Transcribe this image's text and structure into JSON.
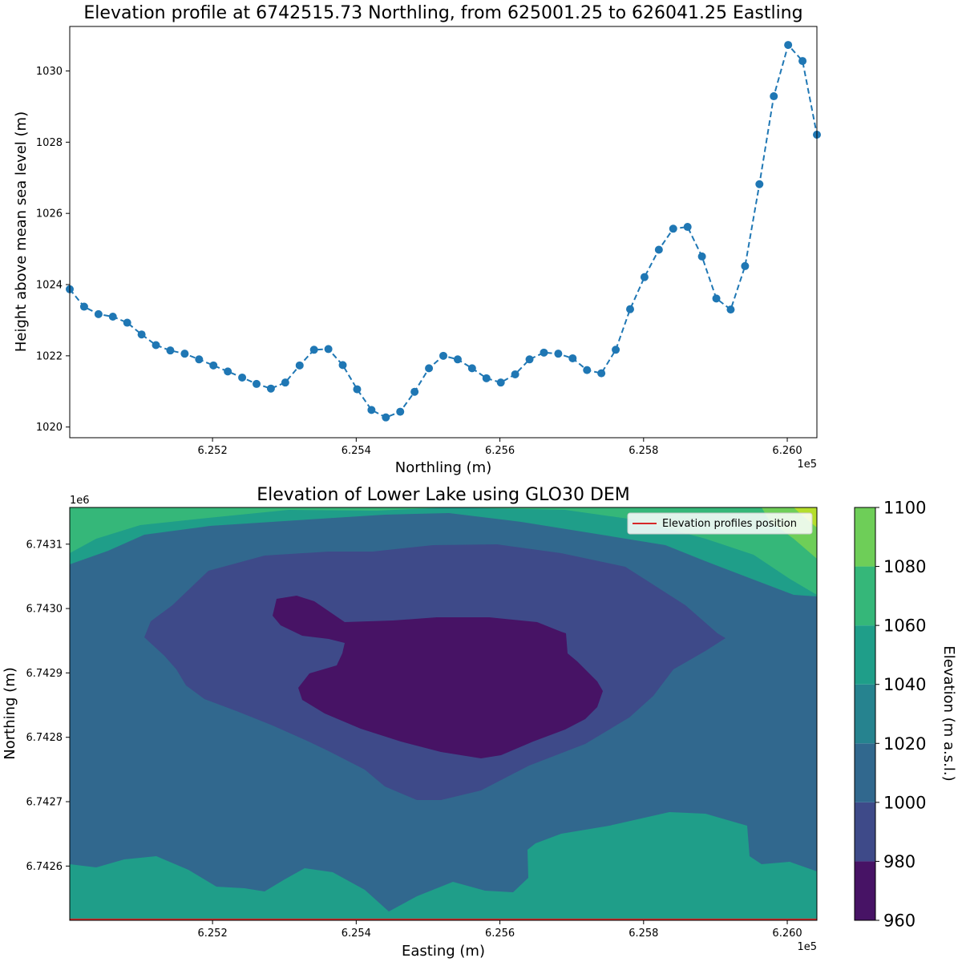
{
  "chart_data": [
    {
      "type": "line",
      "title": "Elevation profile at 6742515.73 Northling, from 625001.25 to 626041.25 Eastling",
      "xlabel": "Northling (m)",
      "ylabel": "Height above mean sea level (m)",
      "x_offset_label": "1e5",
      "xlim": [
        625001.25,
        626041.25
      ],
      "ylim": [
        1019.7,
        1031.25
      ],
      "x_ticks": [
        625200,
        625400,
        625600,
        625800,
        626000
      ],
      "x_tick_labels": [
        "6.252",
        "6.254",
        "6.256",
        "6.258",
        "6.260"
      ],
      "y_ticks": [
        1020,
        1022,
        1024,
        1026,
        1028,
        1030
      ],
      "y_tick_labels": [
        "1020",
        "1022",
        "1024",
        "1026",
        "1028",
        "1030"
      ],
      "grid": false,
      "line_style": "dashed",
      "marker": "circle",
      "color": "#1f77b4",
      "series": [
        {
          "x": [
            625001.25,
            625021.25,
            625041.25,
            625061.25,
            625081.25,
            625101.25,
            625121.25,
            625141.25,
            625161.25,
            625181.25,
            625201.25,
            625221.25,
            625241.25,
            625261.25,
            625281.25,
            625301.25,
            625321.25,
            625341.25,
            625361.25,
            625381.25,
            625401.25,
            625421.25,
            625441.25,
            625461.25,
            625481.25,
            625501.25,
            625521.25,
            625541.25,
            625561.25,
            625581.25,
            625601.25,
            625621.25,
            625641.25,
            625661.25,
            625681.25,
            625701.25,
            625721.25,
            625741.25,
            625761.25,
            625781.25,
            625801.25,
            625821.25,
            625841.25,
            625861.25,
            625881.25,
            625901.25,
            625921.25,
            625941.25,
            625961.25,
            625981.25,
            626001.25,
            626021.25,
            626041.25
          ],
          "y": [
            1023.87,
            1023.38,
            1023.17,
            1023.1,
            1022.93,
            1022.6,
            1022.3,
            1022.15,
            1022.06,
            1021.9,
            1021.73,
            1021.56,
            1021.39,
            1021.21,
            1021.08,
            1021.25,
            1021.73,
            1022.17,
            1022.19,
            1021.74,
            1021.06,
            1020.48,
            1020.27,
            1020.43,
            1020.99,
            1021.65,
            1022.0,
            1021.9,
            1021.65,
            1021.37,
            1021.25,
            1021.48,
            1021.9,
            1022.09,
            1022.06,
            1021.93,
            1021.6,
            1021.51,
            1022.17,
            1023.31,
            1024.21,
            1024.98,
            1025.57,
            1025.62,
            1024.79,
            1023.61,
            1023.3,
            1024.52,
            1026.82,
            1029.29,
            1030.73,
            1030.28,
            1028.21
          ]
        }
      ]
    },
    {
      "type": "contour",
      "title": "Elevation of Lower Lake using GLO30 DEM",
      "xlabel": "Easting (m)",
      "ylabel": "Northing (m)",
      "x_offset_label": "1e5",
      "y_offset_label": "1e6",
      "xlim": [
        625001.25,
        626041.25
      ],
      "ylim": [
        6742515.73,
        6743157
      ],
      "x_ticks": [
        625200,
        625400,
        625600,
        625800,
        626000
      ],
      "x_tick_labels": [
        "6.252",
        "6.254",
        "6.256",
        "6.258",
        "6.260"
      ],
      "y_ticks": [
        6742600,
        6742700,
        6742800,
        6742900,
        6743000,
        6743100
      ],
      "y_tick_labels": [
        "6.7426",
        "6.7427",
        "6.7428",
        "6.7429",
        "6.7430",
        "6.7431"
      ],
      "legend": {
        "label": "Elevation profiles position",
        "placement": "upper right",
        "line_color": "#d62728"
      },
      "profile_line_northing": 6742515.73,
      "colorbar": {
        "label": "Elevation (m a.s.l.)",
        "levels": [
          960,
          980,
          1000,
          1020,
          1040,
          1060,
          1080,
          1100
        ],
        "tick_labels": [
          "960",
          "980",
          "1000",
          "1020",
          "1040",
          "1060",
          "1080",
          "1100"
        ],
        "colors": [
          "#471365",
          "#3e4a89",
          "#31688e",
          "#26838f",
          "#1f9e89",
          "#35b779",
          "#6ece58",
          "#b5de2b"
        ]
      },
      "bands": [
        {
          "level_min": 1020,
          "level_max": 1040,
          "color": "#1f9e89"
        },
        {
          "level_min": 1040,
          "level_max": 1060,
          "color": "#35b779"
        },
        {
          "level_min": 1060,
          "level_max": 1080,
          "color": "#6ece58"
        },
        {
          "level_min": 1080,
          "level_max": 1100,
          "color": "#b5de2b"
        },
        {
          "level_min": 1000,
          "level_max": 1020,
          "color": "#31688e"
        },
        {
          "level_min": 980,
          "level_max": 1000,
          "color": "#3e4a89"
        },
        {
          "level_min": 960,
          "level_max": 980,
          "color": "#471365"
        }
      ]
    }
  ]
}
